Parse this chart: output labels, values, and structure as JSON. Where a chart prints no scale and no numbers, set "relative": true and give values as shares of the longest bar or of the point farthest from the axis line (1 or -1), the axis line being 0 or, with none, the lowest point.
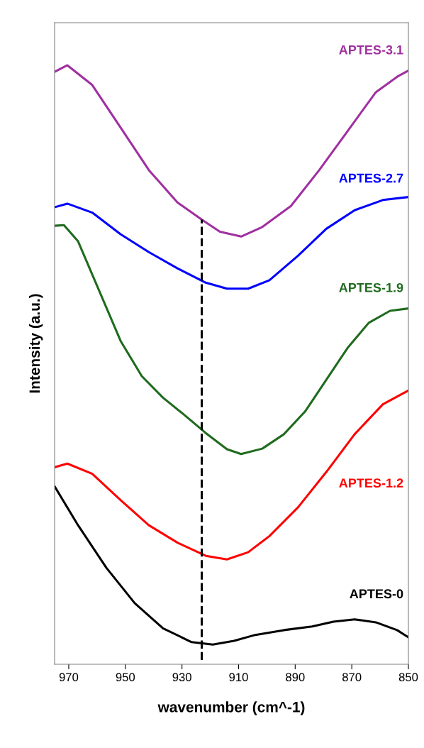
{
  "chart_data": {
    "type": "line",
    "relative": true,
    "xlabel": "wavenumber (cm^-1)",
    "ylabel": "Intensity (a.u.)",
    "xlim": [
      975,
      850
    ],
    "xticks": [
      970,
      950,
      930,
      910,
      890,
      870,
      850
    ],
    "grid": false,
    "marker": "none",
    "line_style": "solid",
    "ref_lines": [
      {
        "axis": "x",
        "value": 923,
        "color": "#000000",
        "line_style": "dashed"
      }
    ],
    "series": [
      {
        "name": "APTES-3.1",
        "color": "#a030a0",
        "x": [
          975,
          970.5,
          961.7,
          951.7,
          941.7,
          931.6,
          922.9,
          916.6,
          909.1,
          901.6,
          891.5,
          881.5,
          871.5,
          861.5,
          853.9,
          850
        ],
        "values": [
          0.989,
          1.0,
          0.967,
          0.896,
          0.825,
          0.771,
          0.742,
          0.722,
          0.714,
          0.73,
          0.765,
          0.825,
          0.89,
          0.955,
          0.981,
          0.991
        ]
      },
      {
        "name": "APTES-2.7",
        "color": "#0000ff",
        "x": [
          975,
          970.5,
          961.7,
          951.7,
          941.7,
          931.6,
          921.6,
          914.1,
          906.6,
          899.1,
          889.0,
          879.0,
          869.0,
          859.0,
          850
        ],
        "values": [
          0.763,
          0.769,
          0.754,
          0.718,
          0.688,
          0.661,
          0.637,
          0.627,
          0.627,
          0.641,
          0.682,
          0.727,
          0.758,
          0.775,
          0.78
        ]
      },
      {
        "name": "APTES-1.9",
        "color": "#1f6b1f",
        "x": [
          975,
          971.7,
          966.7,
          959.2,
          951.7,
          944.2,
          936.7,
          929.1,
          921.6,
          914.1,
          909.1,
          901.6,
          894.0,
          886.5,
          879.0,
          871.5,
          864.0,
          856.5,
          850
        ],
        "values": [
          0.732,
          0.733,
          0.706,
          0.623,
          0.54,
          0.481,
          0.445,
          0.416,
          0.386,
          0.359,
          0.351,
          0.36,
          0.384,
          0.422,
          0.475,
          0.528,
          0.57,
          0.59,
          0.594
        ]
      },
      {
        "name": "APTES-1.2",
        "color": "#ff0000",
        "x": [
          975,
          970.5,
          961.7,
          951.7,
          941.7,
          931.6,
          921.6,
          914.1,
          906.6,
          899.1,
          889.0,
          879.0,
          869.0,
          859.0,
          850
        ],
        "values": [
          0.329,
          0.335,
          0.318,
          0.274,
          0.232,
          0.203,
          0.181,
          0.175,
          0.187,
          0.214,
          0.262,
          0.321,
          0.384,
          0.434,
          0.457
        ]
      },
      {
        "name": "APTES-0",
        "color": "#000000",
        "x": [
          975,
          966.7,
          956.7,
          946.7,
          936.7,
          926.6,
          919.1,
          911.6,
          904.1,
          894.0,
          884.0,
          876.5,
          869.0,
          861.5,
          854.0,
          850
        ],
        "values": [
          0.297,
          0.232,
          0.161,
          0.102,
          0.06,
          0.037,
          0.033,
          0.039,
          0.049,
          0.057,
          0.063,
          0.071,
          0.075,
          0.07,
          0.057,
          0.045
        ]
      }
    ]
  }
}
